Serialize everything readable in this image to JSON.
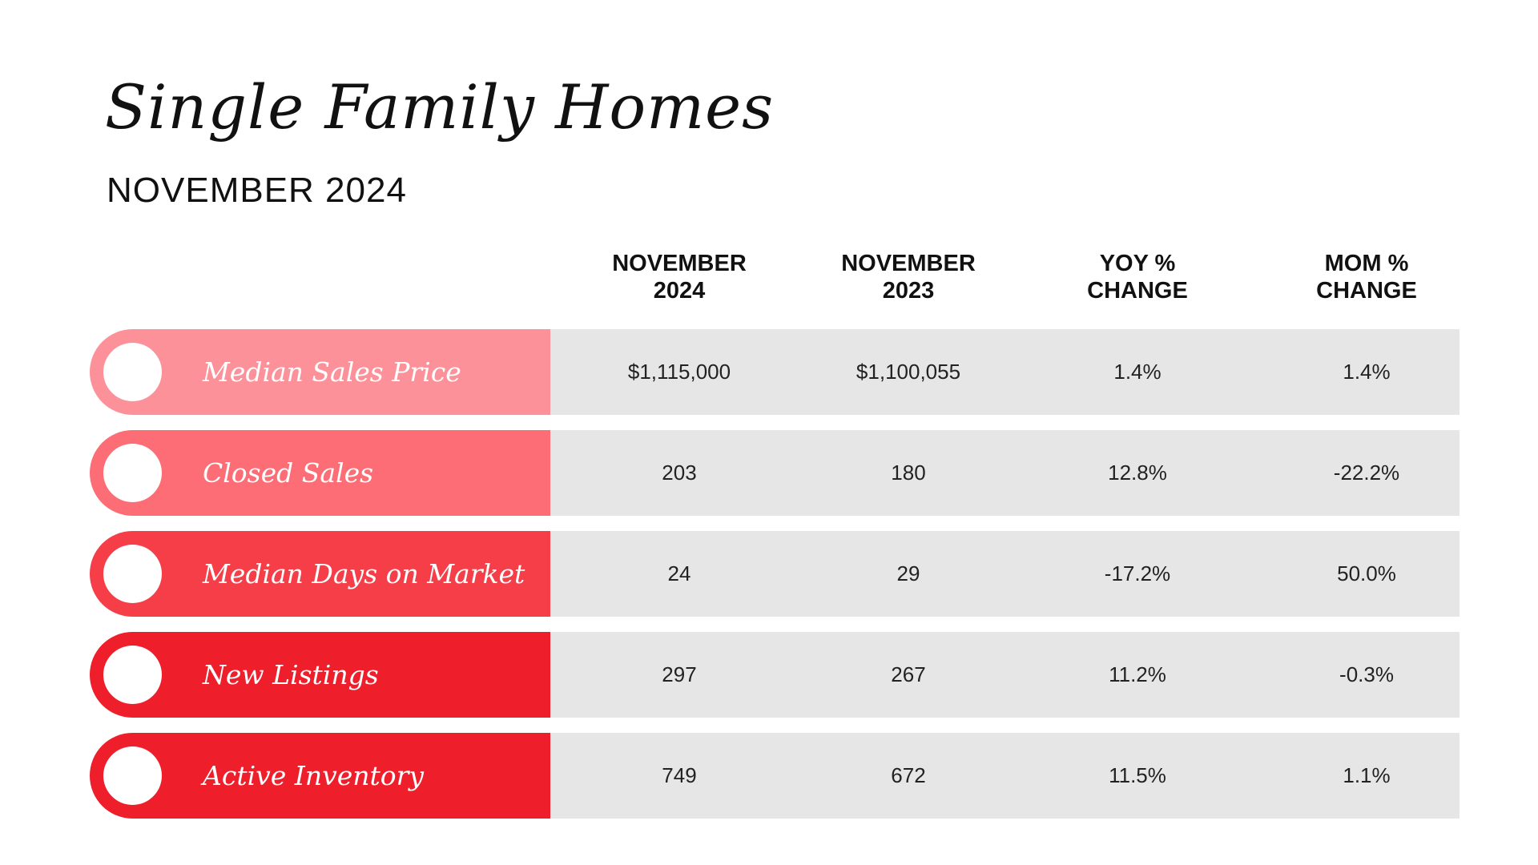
{
  "title": "Single Family Homes",
  "subtitle": "NOVEMBER 2024",
  "columns": [
    {
      "line1": "NOVEMBER",
      "line2": "2024"
    },
    {
      "line1": "NOVEMBER",
      "line2": "2023"
    },
    {
      "line1": "YOY %",
      "line2": "CHANGE"
    },
    {
      "line1": "MOM %",
      "line2": "CHANGE"
    }
  ],
  "rows": [
    {
      "label": "Median Sales Price",
      "color": "#fd9199",
      "values": [
        "$1,115,000",
        "$1,100,055",
        "1.4%",
        "1.4%"
      ]
    },
    {
      "label": "Closed Sales",
      "color": "#fc6d76",
      "values": [
        "203",
        "180",
        "12.8%",
        "-22.2%"
      ]
    },
    {
      "label": "Median Days on Market",
      "color": "#f53e48",
      "values": [
        "24",
        "29",
        "-17.2%",
        "50.0%"
      ]
    },
    {
      "label": "New Listings",
      "color": "#ee1e2b",
      "values": [
        "297",
        "267",
        "11.2%",
        "-0.3%"
      ]
    },
    {
      "label": "Active Inventory",
      "color": "#ee1e2b",
      "values": [
        "749",
        "672",
        "11.5%",
        "1.1%"
      ]
    }
  ],
  "colors": {
    "row_background": "#e6e6e6",
    "text": "#111111"
  }
}
